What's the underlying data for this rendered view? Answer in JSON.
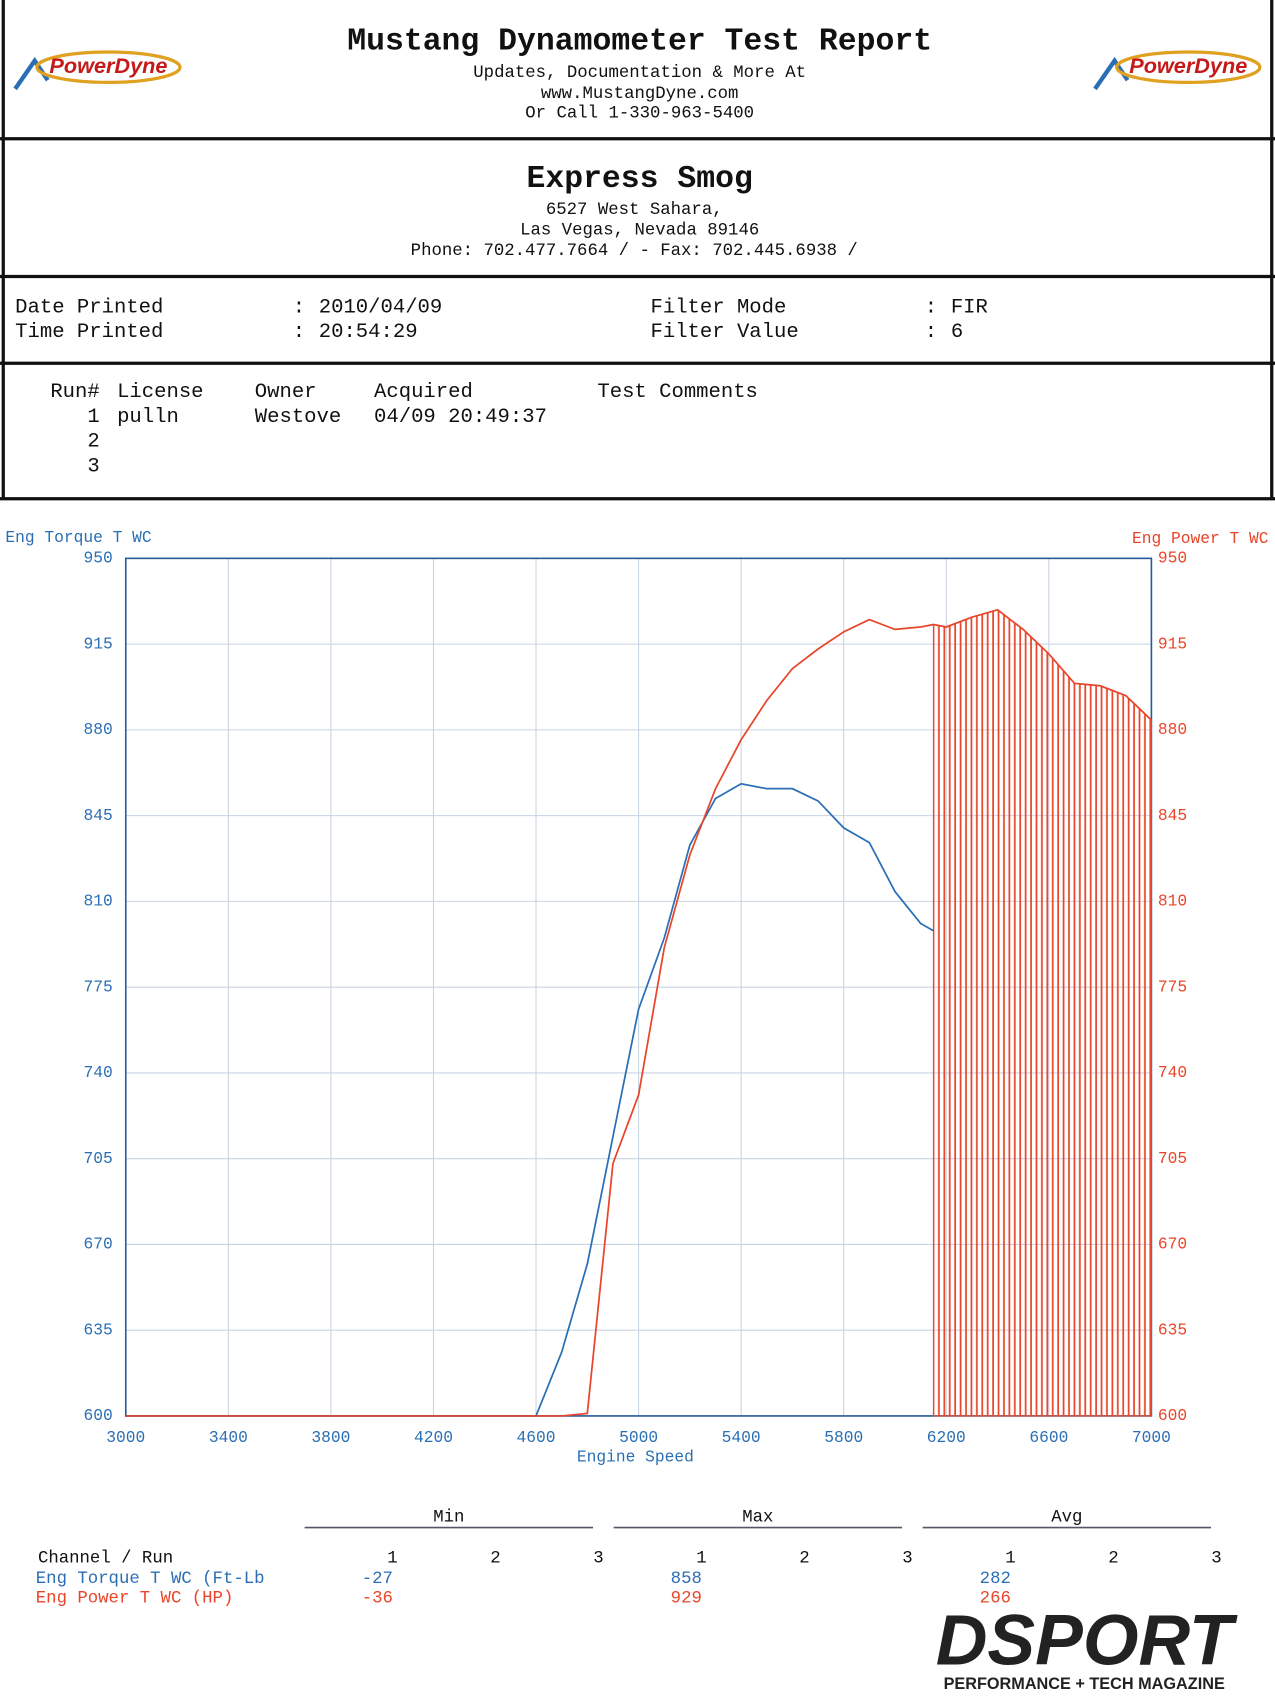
{
  "header": {
    "title": "Mustang Dynamometer Test Report",
    "lines": [
      "Updates, Documentation & More At",
      "www.MustangDyne.com",
      "Or Call 1-330-963-5400"
    ]
  },
  "logos": {
    "left": "PowerDyne",
    "right": "PowerDyne"
  },
  "shop": {
    "name": "Express Smog",
    "lines": [
      "6527 West Sahara,",
      "Las Vegas, Nevada  89146",
      "Phone: 702.477.7664 /  - Fax: 702.445.6938 /"
    ]
  },
  "info": {
    "separator": ":",
    "left": [
      {
        "label": "Date Printed",
        "value": "2010/04/09"
      },
      {
        "label": "Time Printed",
        "value": "20:54:29"
      }
    ],
    "right": [
      {
        "label": "Filter Mode",
        "value": "FIR"
      },
      {
        "label": "Filter Value",
        "value": "6"
      }
    ]
  },
  "runs": {
    "headers": [
      "Run#",
      "License",
      "Owner",
      "Acquired",
      "Test Comments"
    ],
    "rows": [
      [
        "1",
        "pulln",
        "Westove",
        "04/09 20:49:37"
      ],
      [
        "2"
      ],
      [
        "3"
      ]
    ]
  },
  "chart_data": {
    "type": "line",
    "x_label": "Engine Speed",
    "x": [
      3000,
      4600,
      4700,
      4800,
      4900,
      5000,
      5100,
      5200,
      5300,
      5400,
      5500,
      5600,
      5700,
      5800,
      5900,
      6000,
      6100,
      6150,
      6200,
      6300,
      6400,
      6500,
      6600,
      6700,
      6800,
      6900,
      7000
    ],
    "series": [
      {
        "name": "Eng Torque T WC",
        "color": "#2a6fb5",
        "values": [
          600,
          600,
          626,
          662,
          714,
          766,
          795,
          833,
          852,
          858,
          856,
          856,
          851,
          840,
          834,
          814,
          801,
          798,
          null,
          null,
          null,
          null,
          null,
          null,
          null,
          null,
          null
        ]
      },
      {
        "name": "Eng Power T WC",
        "color": "#e8452a",
        "axis": "y2",
        "values": [
          600,
          600,
          600,
          601,
          703,
          731,
          791,
          829,
          856,
          876,
          892,
          905,
          913,
          920,
          925,
          921,
          922,
          923,
          922,
          926,
          929,
          921,
          911,
          899,
          898,
          894,
          884
        ]
      }
    ],
    "xlim": [
      3000,
      7000
    ],
    "xticks": [
      3000,
      3400,
      3800,
      4200,
      4600,
      5000,
      5400,
      5800,
      6200,
      6600,
      7000
    ],
    "ylim": [
      600,
      950
    ],
    "yticks": [
      600,
      635,
      670,
      705,
      740,
      775,
      810,
      845,
      880,
      915,
      950
    ],
    "y2lim": [
      600,
      950
    ],
    "y2ticks": [
      600,
      635,
      670,
      705,
      740,
      775,
      810,
      845,
      880,
      915,
      950
    ],
    "grid": true
  },
  "stats": {
    "groups": [
      "Min",
      "Max",
      "Avg"
    ],
    "runs": [
      "1",
      "2",
      "3"
    ],
    "channel_header": "Channel / Run",
    "rows": [
      {
        "name": "Eng Torque T WC (Ft-Lb",
        "color": "#2a6fb5",
        "values": [
          -27,
          858,
          282
        ]
      },
      {
        "name": "Eng Power T WC (HP)",
        "color": "#e8452a",
        "values": [
          -36,
          929,
          266
        ]
      }
    ]
  },
  "footer": {
    "brand": "DSPORT",
    "tagline": "PERFORMANCE + TECH MAGAZINE"
  }
}
